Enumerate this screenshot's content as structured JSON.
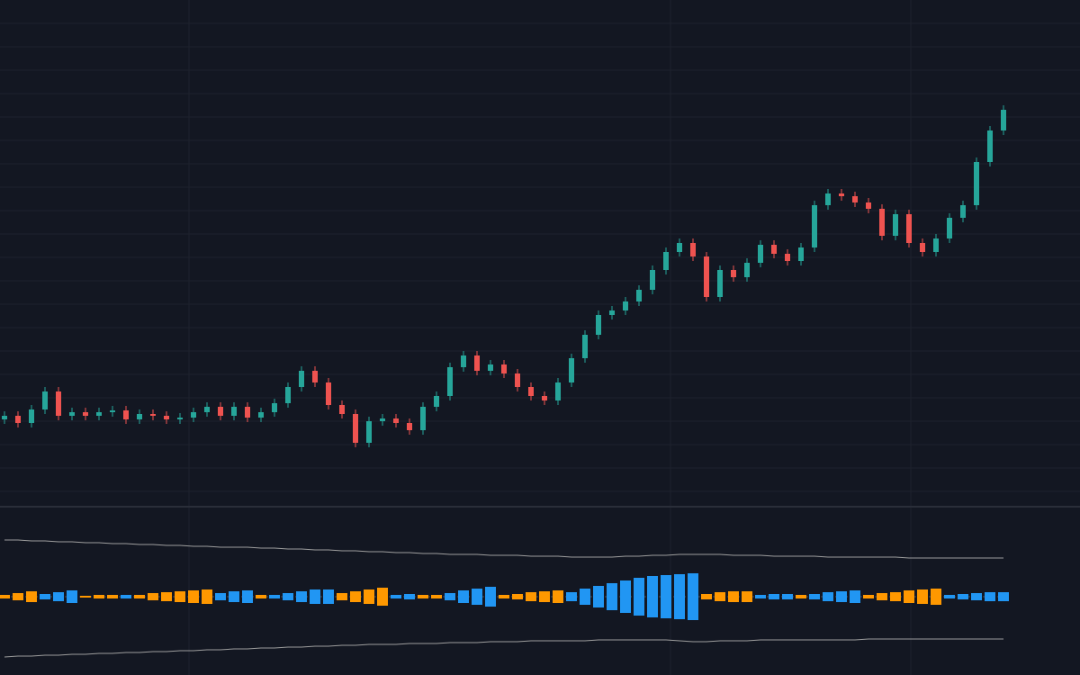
{
  "chart_data": [
    {
      "type": "candlestick",
      "open": [
        96,
        100,
        92,
        107,
        127,
        100,
        104,
        100,
        104,
        106,
        96,
        102,
        100,
        96,
        98,
        104,
        110,
        100,
        110,
        98,
        104,
        114,
        132,
        150,
        137,
        112,
        102,
        70,
        94,
        97,
        92,
        84,
        110,
        122,
        154,
        167,
        150,
        157,
        147,
        132,
        122,
        117,
        137,
        164,
        190,
        212,
        217,
        227,
        240,
        262,
        282,
        292,
        277,
        232,
        262,
        254,
        270,
        290,
        280,
        272,
        287,
        334,
        347,
        344,
        337,
        330,
        300,
        324,
        292,
        282,
        297,
        320,
        334,
        382,
        417
      ],
      "high": [
        105,
        105,
        112,
        132,
        132,
        109,
        109,
        109,
        111,
        111,
        107,
        107,
        105,
        103,
        109,
        115,
        115,
        115,
        115,
        109,
        119,
        137,
        155,
        155,
        142,
        117,
        107,
        99,
        102,
        102,
        97,
        115,
        127,
        159,
        172,
        172,
        162,
        162,
        152,
        137,
        127,
        142,
        169,
        195,
        217,
        222,
        232,
        245,
        267,
        287,
        297,
        297,
        282,
        267,
        267,
        275,
        295,
        295,
        285,
        292,
        339,
        352,
        352,
        349,
        342,
        335,
        329,
        329,
        297,
        302,
        325,
        339,
        387,
        422,
        445
      ],
      "low": [
        91,
        87,
        87,
        102,
        95,
        95,
        95,
        95,
        99,
        91,
        91,
        95,
        91,
        91,
        93,
        99,
        95,
        95,
        93,
        93,
        99,
        109,
        127,
        132,
        107,
        97,
        65,
        65,
        89,
        87,
        79,
        79,
        105,
        117,
        149,
        145,
        145,
        142,
        127,
        117,
        112,
        112,
        132,
        159,
        185,
        207,
        212,
        222,
        235,
        257,
        277,
        272,
        227,
        227,
        249,
        249,
        265,
        275,
        267,
        267,
        282,
        329,
        339,
        332,
        325,
        295,
        295,
        287,
        277,
        277,
        292,
        315,
        329,
        377,
        412
      ],
      "close": [
        100,
        92,
        107,
        127,
        100,
        104,
        100,
        104,
        106,
        96,
        102,
        100,
        96,
        98,
        104,
        110,
        100,
        110,
        98,
        104,
        114,
        132,
        150,
        137,
        112,
        102,
        70,
        94,
        97,
        92,
        84,
        110,
        122,
        154,
        167,
        150,
        157,
        147,
        132,
        122,
        117,
        137,
        164,
        190,
        212,
        217,
        227,
        240,
        262,
        282,
        292,
        277,
        232,
        262,
        254,
        270,
        290,
        280,
        272,
        287,
        334,
        347,
        344,
        337,
        330,
        300,
        324,
        292,
        282,
        297,
        320,
        334,
        382,
        417,
        440
      ],
      "ylim": [
        0,
        562
      ],
      "up_color": "#26a69a",
      "down_color": "#ef5350",
      "grid": true
    },
    {
      "type": "bar",
      "values": [
        -2,
        -4,
        -6,
        3,
        5,
        7,
        -1,
        -2,
        -2,
        2,
        -2,
        -4,
        -5,
        -6,
        -7,
        -8,
        4,
        6,
        7,
        -2,
        2,
        4,
        6,
        8,
        8,
        -4,
        -6,
        -8,
        -10,
        2,
        3,
        -2,
        -2,
        4,
        7,
        9,
        11,
        -2,
        -3,
        -5,
        -6,
        -7,
        5,
        9,
        12,
        15,
        18,
        21,
        23,
        24,
        25,
        26,
        -3,
        -5,
        -6,
        -6,
        2,
        3,
        3,
        -2,
        3,
        5,
        6,
        7,
        -2,
        -4,
        -5,
        -7,
        -8,
        -9,
        2,
        3,
        4,
        5,
        5
      ],
      "upper": [
        63,
        63,
        62,
        62,
        61,
        61,
        60,
        60,
        59,
        59,
        58,
        58,
        57,
        57,
        56,
        56,
        55,
        55,
        55,
        54,
        54,
        53,
        53,
        52,
        52,
        51,
        51,
        50,
        50,
        49,
        49,
        48,
        48,
        47,
        47,
        47,
        46,
        46,
        46,
        45,
        45,
        45,
        44,
        44,
        44,
        44,
        45,
        45,
        46,
        46,
        47,
        47,
        47,
        47,
        46,
        46,
        46,
        45,
        45,
        45,
        45,
        44,
        44,
        44,
        44,
        44,
        44,
        43,
        43,
        43,
        43,
        43,
        43,
        43,
        43
      ],
      "lower": [
        -67,
        -66,
        -66,
        -65,
        -65,
        -64,
        -64,
        -63,
        -63,
        -62,
        -62,
        -61,
        -61,
        -60,
        -60,
        -59,
        -59,
        -58,
        -58,
        -57,
        -57,
        -56,
        -56,
        -55,
        -55,
        -54,
        -54,
        -53,
        -53,
        -53,
        -52,
        -52,
        -52,
        -51,
        -51,
        -51,
        -50,
        -50,
        -50,
        -49,
        -49,
        -49,
        -49,
        -49,
        -48,
        -48,
        -48,
        -48,
        -48,
        -48,
        -49,
        -50,
        -50,
        -49,
        -49,
        -49,
        -48,
        -48,
        -48,
        -48,
        -48,
        -48,
        -48,
        -48,
        -47,
        -47,
        -47,
        -47,
        -47,
        -47,
        -47,
        -47,
        -47,
        -47,
        -47
      ],
      "ylim": [
        -87,
        98
      ],
      "up_color": "#2196f3",
      "down_color": "#ff9800",
      "line_color": "#9e9e9e"
    }
  ]
}
